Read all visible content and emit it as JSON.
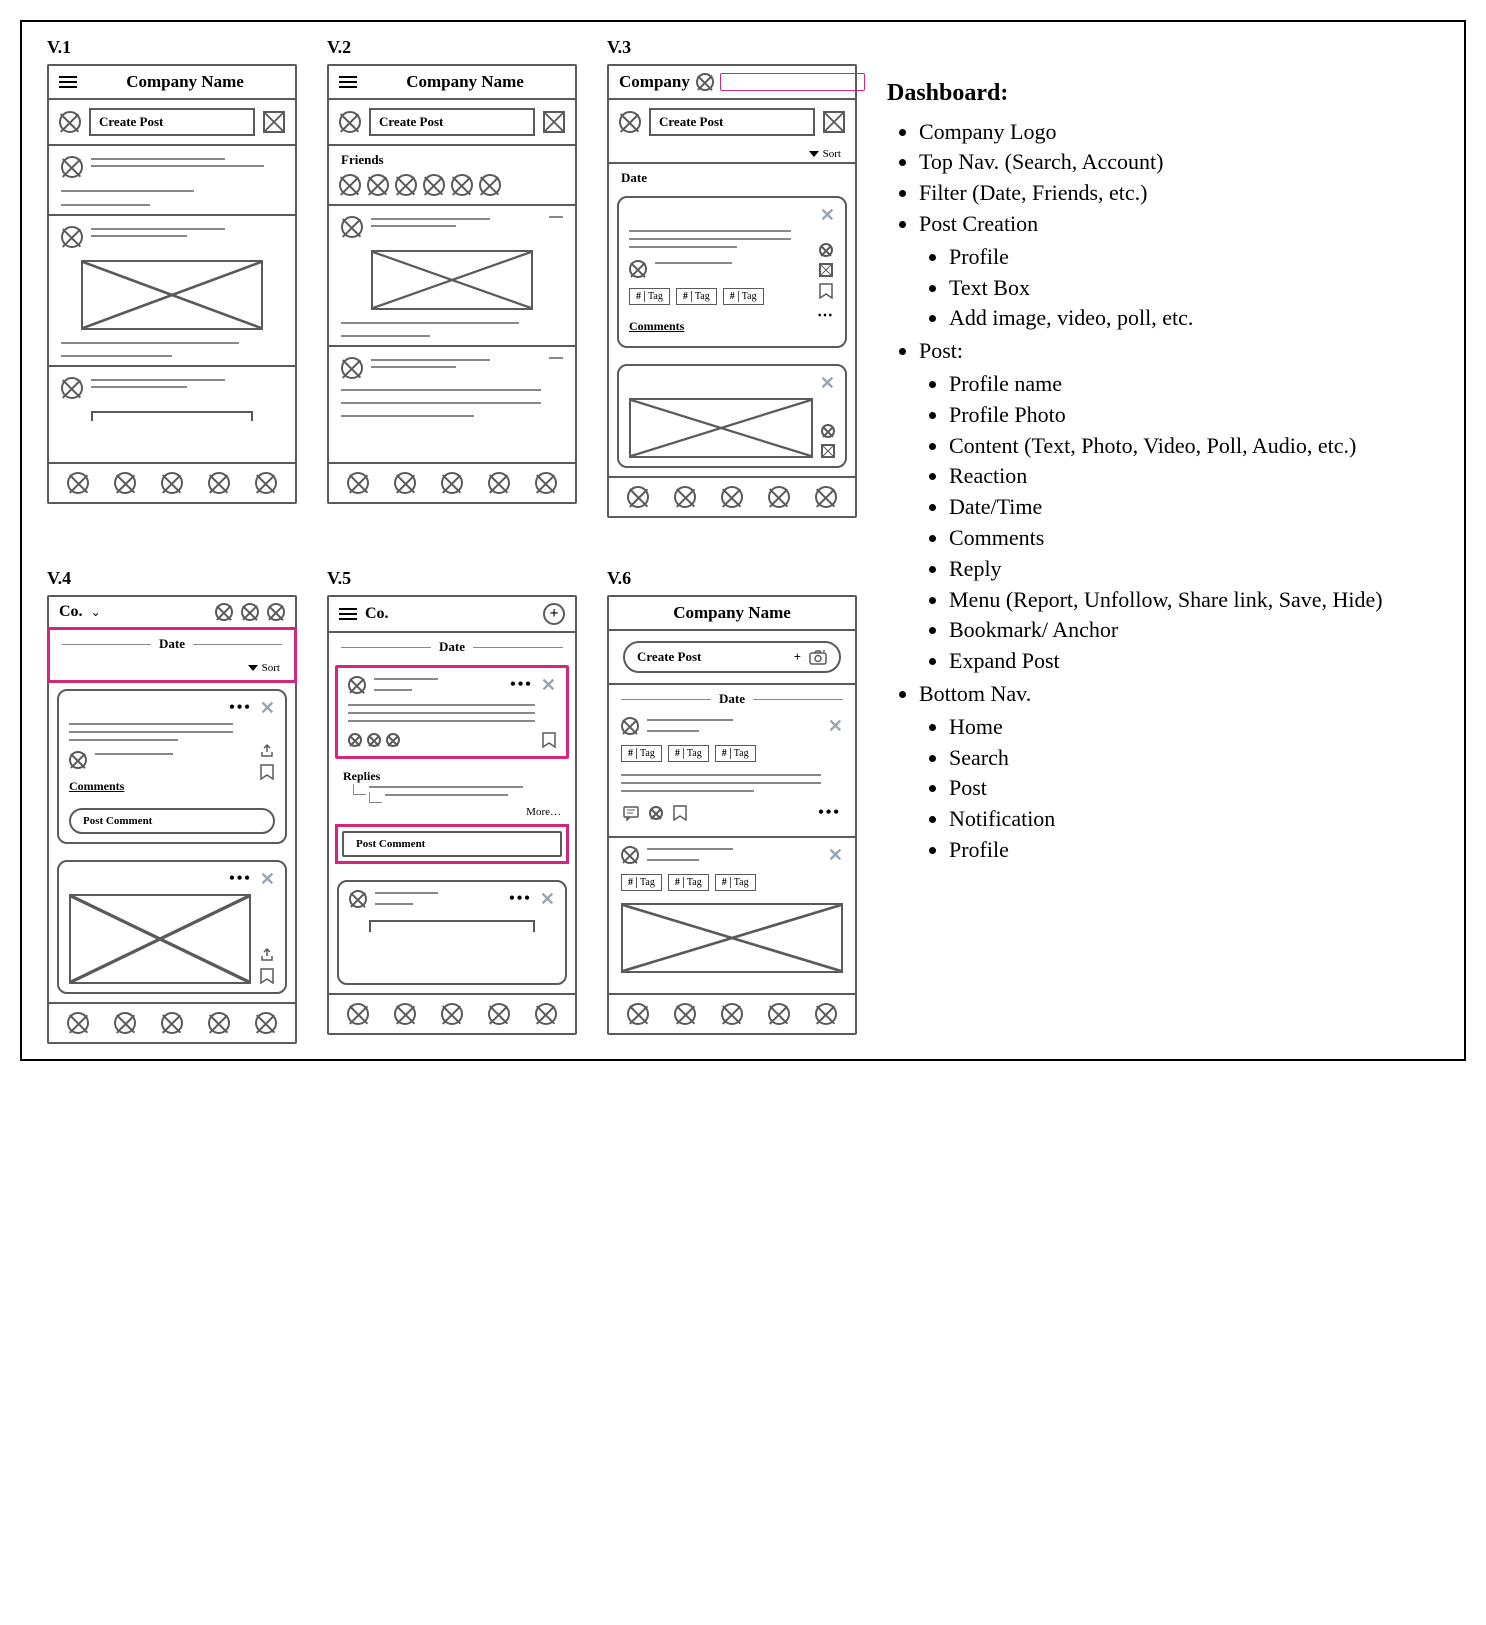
{
  "labels": {
    "v1": "V.1",
    "v2": "V.2",
    "v3": "V.3",
    "v4": "V.4",
    "v5": "V.5",
    "v6": "V.6",
    "company": "Company Name",
    "company_short": "Company",
    "co": "Co.",
    "create_post": "Create Post",
    "friends": "Friends",
    "date": "Date",
    "sort": "Sort",
    "tag": "Tag",
    "comments": "Comments",
    "replies": "Replies",
    "more": "More…",
    "post_comment": "Post Comment"
  },
  "colors": {
    "outline": "#5a5a5a",
    "highlight": "#d4267d",
    "close_x": "#9aa5b1",
    "placeholder": "#888"
  },
  "notes": {
    "title": "Dashboard:",
    "items": [
      {
        "t": "Company Logo"
      },
      {
        "t": "Top Nav. (Search, Account)"
      },
      {
        "t": "Filter (Date, Friends, etc.)"
      },
      {
        "t": "Post Creation",
        "sub": [
          "Profile",
          "Text Box",
          "Add image, video, poll, etc."
        ]
      },
      {
        "t": "Post:",
        "sub": [
          "Profile name",
          "Profile Photo",
          "Content (Text, Photo, Video, Poll, Audio, etc.)",
          "Reaction",
          "Date/Time",
          "Comments",
          "Reply",
          "Menu (Report, Unfollow, Share link, Save, Hide)",
          "Bookmark/ Anchor",
          "Expand Post"
        ]
      },
      {
        "t": "Bottom Nav.",
        "sub": [
          "Home",
          "Search",
          "Post",
          "Notification",
          "Profile"
        ]
      }
    ]
  }
}
